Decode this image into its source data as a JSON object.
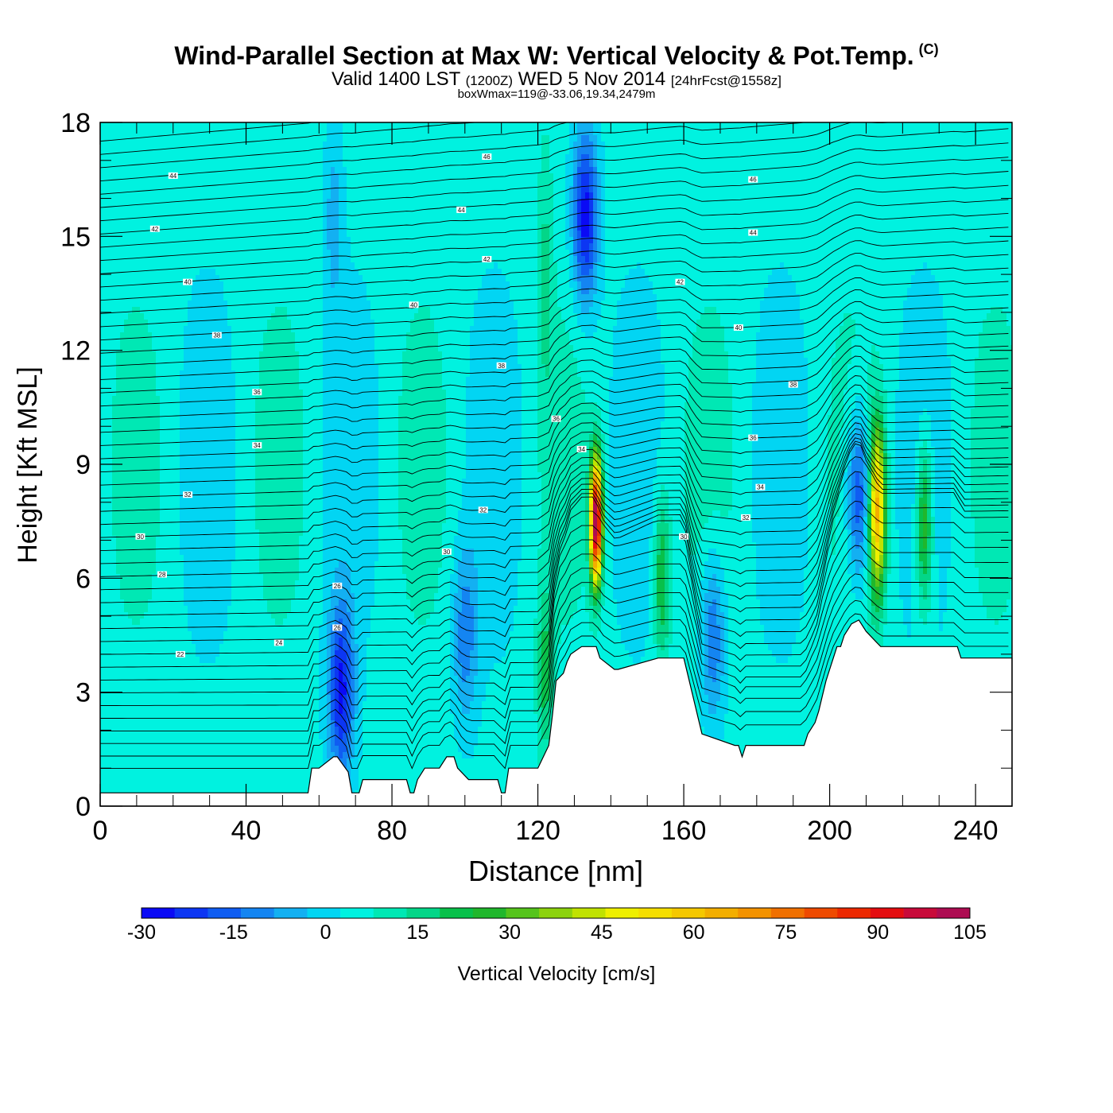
{
  "header": {
    "title": "Wind-Parallel Section at Max W: Vertical Velocity & Pot.Temp.",
    "copyright": "(C)",
    "valid_prefix": "Valid 1400 LST",
    "valid_zulu": "(1200Z)",
    "valid_date": "WED 5 Nov 2014",
    "forecast": "[24hrFcst@1558z]",
    "box_info": "boxWmax=119@-33.06,19.34,2479m"
  },
  "chart_data": {
    "type": "heatmap",
    "title": "Wind-Parallel Section at Max W: Vertical Velocity & Pot.Temp.",
    "xlabel": "Distance [nm]",
    "ylabel": "Height [Kft MSL]",
    "xlim": [
      0,
      250
    ],
    "ylim": [
      0,
      18
    ],
    "x_ticks": [
      0,
      40,
      80,
      120,
      160,
      200,
      240
    ],
    "y_ticks": [
      0,
      3,
      6,
      9,
      12,
      15,
      18
    ],
    "colorbar": {
      "label": "Vertical Velocity [cm/s]",
      "min": -30,
      "max": 105,
      "step": 5,
      "tick_values": [
        -30,
        -15,
        0,
        15,
        30,
        45,
        60,
        75,
        90,
        105
      ],
      "colors": [
        "#0a0af5",
        "#0c36f3",
        "#0f5df2",
        "#1485f2",
        "#13b0f2",
        "#02d5f3",
        "#00f2e0",
        "#00e8b4",
        "#03d688",
        "#08c04a",
        "#20b72c",
        "#55c41b",
        "#8cd20d",
        "#c0e201",
        "#eeef00",
        "#f5de00",
        "#f5c800",
        "#f3ae00",
        "#f39200",
        "#f07000",
        "#ee4a00",
        "#ec2800",
        "#e40d10",
        "#c80a3a",
        "#ad0c52"
      ]
    },
    "terrain_profile": {
      "distance_nm": [
        0,
        57,
        58,
        60,
        64,
        65,
        68,
        69,
        71,
        72,
        80,
        84,
        85,
        86,
        87,
        89,
        93,
        95,
        97,
        98,
        101,
        109,
        110,
        111,
        112,
        120,
        123,
        124,
        125,
        127,
        128,
        129,
        132,
        133,
        136,
        137,
        141,
        142,
        153,
        154,
        160,
        161,
        164,
        165,
        174,
        175,
        176,
        177,
        193,
        194,
        196,
        197,
        198,
        199,
        200,
        201,
        202,
        203,
        204,
        206,
        208,
        210,
        213,
        214,
        219,
        235,
        236,
        250
      ],
      "height_kft": [
        0.35,
        0.35,
        1.0,
        1.0,
        1.3,
        1.3,
        0.9,
        0.35,
        0.35,
        0.7,
        0.7,
        0.7,
        0.35,
        0.35,
        0.7,
        1.0,
        1.0,
        1.3,
        1.3,
        1.0,
        0.7,
        0.7,
        0.35,
        0.35,
        1.0,
        1.0,
        1.6,
        2.4,
        3.3,
        3.5,
        3.8,
        4.0,
        4.2,
        4.2,
        4.2,
        3.9,
        3.6,
        3.6,
        3.9,
        3.9,
        3.9,
        3.5,
        2.3,
        1.9,
        1.6,
        1.6,
        1.3,
        1.6,
        1.6,
        1.9,
        2.2,
        2.5,
        2.9,
        3.3,
        3.6,
        3.9,
        4.2,
        4.2,
        4.5,
        4.8,
        4.9,
        4.6,
        4.3,
        4.2,
        4.2,
        4.2,
        3.9,
        3.9
      ]
    },
    "updraft_cores": [
      {
        "distance_nm": 136,
        "height_kft": 7.5,
        "max_cm_s": 95
      },
      {
        "distance_nm": 213,
        "height_kft": 7.8,
        "max_cm_s": 55
      },
      {
        "distance_nm": 226,
        "height_kft": 7.4,
        "max_cm_s": 25
      },
      {
        "distance_nm": 154,
        "height_kft": 6.0,
        "max_cm_s": 20
      },
      {
        "distance_nm": 122,
        "height_kft": 3.5,
        "max_cm_s": 15
      }
    ],
    "downdraft_cores": [
      {
        "distance_nm": 66,
        "height_kft": 3.0,
        "min_cm_s": -28
      },
      {
        "distance_nm": 133,
        "height_kft": 15.5,
        "min_cm_s": -30
      },
      {
        "distance_nm": 208,
        "height_kft": 8.2,
        "min_cm_s": -25
      },
      {
        "distance_nm": 100,
        "height_kft": 4.5,
        "min_cm_s": -15
      },
      {
        "distance_nm": 168,
        "height_kft": 4.5,
        "min_cm_s": -18
      }
    ],
    "theta_contours": {
      "label_values": [
        22,
        24,
        26,
        28,
        30,
        32,
        34,
        36,
        38,
        40,
        42,
        44,
        46
      ],
      "left_edge_heights_kft": [
        0.7,
        1.05,
        1.4,
        1.75,
        2.1,
        2.45,
        2.8,
        3.15,
        3.5,
        3.85,
        4.2,
        4.55,
        4.9,
        5.25,
        5.6,
        5.95,
        6.3,
        6.65,
        7.0,
        7.35,
        7.7,
        8.05,
        8.4,
        8.75,
        9.1,
        9.45,
        9.8,
        10.15,
        10.5,
        10.85,
        11.2,
        11.55,
        11.9,
        12.25,
        12.6,
        12.95,
        13.3,
        13.65,
        14.0,
        14.35,
        14.7,
        15.05,
        15.4,
        15.75,
        16.1,
        16.45,
        16.8,
        17.15,
        17.5
      ],
      "labels": [
        {
          "text": "22",
          "distance_nm": 22,
          "height_kft": 4.0
        },
        {
          "text": "24",
          "distance_nm": 49,
          "height_kft": 4.3
        },
        {
          "text": "26",
          "distance_nm": 65,
          "height_kft": 4.7
        },
        {
          "text": "26",
          "distance_nm": 65,
          "height_kft": 5.8
        },
        {
          "text": "28",
          "distance_nm": 17,
          "height_kft": 6.1
        },
        {
          "text": "30",
          "distance_nm": 11,
          "height_kft": 7.1
        },
        {
          "text": "30",
          "distance_nm": 95,
          "height_kft": 6.7
        },
        {
          "text": "30",
          "distance_nm": 160,
          "height_kft": 7.1
        },
        {
          "text": "32",
          "distance_nm": 24,
          "height_kft": 8.2
        },
        {
          "text": "32",
          "distance_nm": 105,
          "height_kft": 7.8
        },
        {
          "text": "32",
          "distance_nm": 177,
          "height_kft": 7.6
        },
        {
          "text": "34",
          "distance_nm": 43,
          "height_kft": 9.5
        },
        {
          "text": "34",
          "distance_nm": 132,
          "height_kft": 9.4
        },
        {
          "text": "34",
          "distance_nm": 181,
          "height_kft": 8.4
        },
        {
          "text": "36",
          "distance_nm": 43,
          "height_kft": 10.9
        },
        {
          "text": "36",
          "distance_nm": 125,
          "height_kft": 10.2
        },
        {
          "text": "36",
          "distance_nm": 179,
          "height_kft": 9.7
        },
        {
          "text": "38",
          "distance_nm": 32,
          "height_kft": 12.4
        },
        {
          "text": "38",
          "distance_nm": 110,
          "height_kft": 11.6
        },
        {
          "text": "38",
          "distance_nm": 190,
          "height_kft": 11.1
        },
        {
          "text": "40",
          "distance_nm": 24,
          "height_kft": 13.8
        },
        {
          "text": "40",
          "distance_nm": 86,
          "height_kft": 13.2
        },
        {
          "text": "40",
          "distance_nm": 175,
          "height_kft": 12.6
        },
        {
          "text": "42",
          "distance_nm": 15,
          "height_kft": 15.2
        },
        {
          "text": "42",
          "distance_nm": 106,
          "height_kft": 14.4
        },
        {
          "text": "42",
          "distance_nm": 159,
          "height_kft": 13.8
        },
        {
          "text": "44",
          "distance_nm": 20,
          "height_kft": 16.6
        },
        {
          "text": "44",
          "distance_nm": 99,
          "height_kft": 15.7
        },
        {
          "text": "44",
          "distance_nm": 179,
          "height_kft": 15.1
        },
        {
          "text": "46",
          "distance_nm": 106,
          "height_kft": 17.1
        },
        {
          "text": "46",
          "distance_nm": 179,
          "height_kft": 16.5
        }
      ]
    }
  }
}
